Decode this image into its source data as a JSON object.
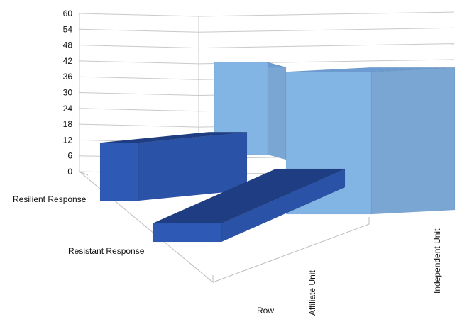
{
  "chart_data": {
    "type": "bar",
    "title": "",
    "xlabel": "Row",
    "ylabel": "",
    "ylim": [
      0,
      60
    ],
    "yticks": [
      0,
      6,
      12,
      18,
      24,
      30,
      36,
      42,
      48,
      54,
      60
    ],
    "grid": true,
    "legend": "none",
    "columns": [
      "Affiliate Unit",
      "Independent Unit"
    ],
    "rows": [
      "Resilient Response",
      "Resistant Response"
    ],
    "bars": [
      {
        "row": "Resilient Response",
        "column": "Affiliate Unit",
        "value": 22
      },
      {
        "row": "Resistant Response",
        "column": "Affiliate Unit",
        "value": 7
      },
      {
        "row": "Resilient Response",
        "column": "Independent Unit",
        "value": 35
      },
      {
        "row": "Resistant Response",
        "column": "Independent Unit",
        "value": 54
      }
    ],
    "colors": {
      "Affiliate Unit": {
        "front": "#2e5ab5",
        "top": "#1f3d82",
        "side": "#2a52a6"
      },
      "Independent Unit": {
        "front": "#83b5e4",
        "top": "#6b9bd0",
        "side": "#7aa6d4"
      }
    }
  }
}
